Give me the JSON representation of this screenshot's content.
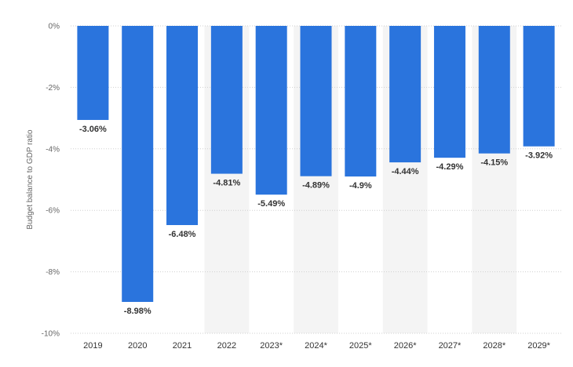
{
  "colors": {
    "bar": "#2a74dd",
    "forecast_band": "#f4f4f4",
    "grid": "#cfcfcf",
    "text": "#333333"
  },
  "chart_data": {
    "type": "bar",
    "ylabel": "Budget balance to GDP ratio",
    "categories": [
      "2019",
      "2020",
      "2021",
      "2022",
      "2023*",
      "2024*",
      "2025*",
      "2026*",
      "2027*",
      "2028*",
      "2029*"
    ],
    "values": [
      -3.06,
      -8.98,
      -6.48,
      -4.81,
      -5.49,
      -4.89,
      -4.9,
      -4.44,
      -4.29,
      -4.15,
      -3.92
    ],
    "data_labels": [
      "-3.06%",
      "-8.98%",
      "-6.48%",
      "-4.81%",
      "-5.49%",
      "-4.89%",
      "-4.9%",
      "-4.44%",
      "-4.29%",
      "-4.15%",
      "-3.92%"
    ],
    "yticks": [
      0,
      -2,
      -4,
      -6,
      -8,
      -10
    ],
    "ytick_labels": [
      "0%",
      "-2%",
      "-4%",
      "-6%",
      "-8%",
      "-10%"
    ],
    "ylim": [
      -10,
      0
    ],
    "grid": true,
    "legend": false,
    "shaded_categories": [
      "2022",
      "2024*",
      "2026*",
      "2028*"
    ]
  }
}
